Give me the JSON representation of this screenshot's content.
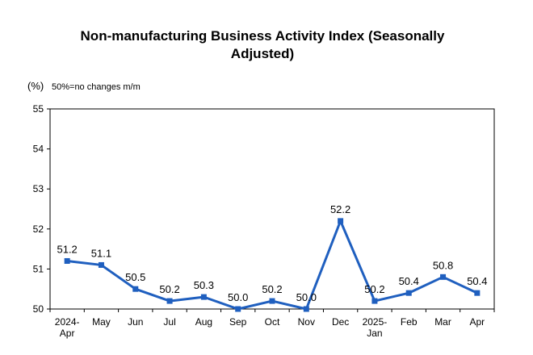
{
  "chart_data": {
    "type": "line",
    "title": "Non-manufacturing Business Activity Index (Seasonally Adjusted)",
    "unit_label": "(%)",
    "annotation": "50%=no changes m/m",
    "categories": [
      [
        "2024-",
        "Apr"
      ],
      [
        "May"
      ],
      [
        "Jun"
      ],
      [
        "Jul"
      ],
      [
        "Aug"
      ],
      [
        "Sep"
      ],
      [
        "Oct"
      ],
      [
        "Nov"
      ],
      [
        "Dec"
      ],
      [
        "2025-",
        "Jan"
      ],
      [
        "Feb"
      ],
      [
        "Mar"
      ],
      [
        "Apr"
      ]
    ],
    "series": [
      {
        "values": [
          51.2,
          51.1,
          50.5,
          50.2,
          50.3,
          50.0,
          50.2,
          50.0,
          52.2,
          50.2,
          50.4,
          50.8,
          50.4
        ],
        "labels": [
          "51.2",
          "51.1",
          "50.5",
          "50.2",
          "50.3",
          "50.0",
          "50.2",
          "50.0",
          "52.2",
          "50.2",
          "50.4",
          "50.8",
          "50.4"
        ],
        "color": "#1f5fbf"
      }
    ],
    "ylim": [
      50,
      55
    ],
    "yticks": [
      "50",
      "51",
      "52",
      "53",
      "54",
      "55"
    ],
    "grid": false,
    "legend": "none"
  }
}
